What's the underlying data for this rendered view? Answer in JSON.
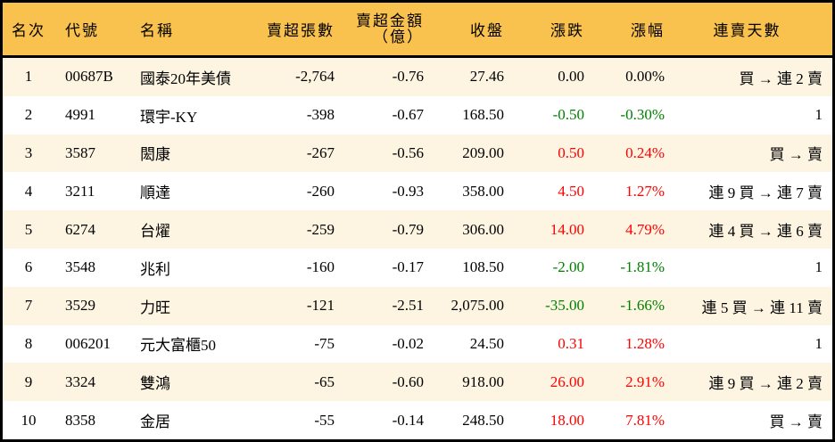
{
  "headers": {
    "rank": "名次",
    "code": "代號",
    "name": "名稱",
    "shares": "賣超張數",
    "amount_l1": "賣超金額",
    "amount_l2": "（億）",
    "close": "收盤",
    "change": "漲跌",
    "pct": "漲幅",
    "streak": "連賣天數"
  },
  "colors": {
    "header_bg": "#F9C14E",
    "odd_row_bg": "#FDF5E2",
    "up": "#FF0000",
    "down": "#008000"
  },
  "rows": [
    {
      "rank": "1",
      "code": "00687B",
      "name": "國泰20年美債",
      "shares": "-2,764",
      "amount": "-0.76",
      "close": "27.46",
      "change": "0.00",
      "pct": "0.00%",
      "dir": "flat",
      "streak": "買 → 連 2 賣"
    },
    {
      "rank": "2",
      "code": "4991",
      "name": "環宇-KY",
      "shares": "-398",
      "amount": "-0.67",
      "close": "168.50",
      "change": "-0.50",
      "pct": "-0.30%",
      "dir": "down",
      "streak": "1"
    },
    {
      "rank": "3",
      "code": "3587",
      "name": "閎康",
      "shares": "-267",
      "amount": "-0.56",
      "close": "209.00",
      "change": "0.50",
      "pct": "0.24%",
      "dir": "up",
      "streak": "買 → 賣"
    },
    {
      "rank": "4",
      "code": "3211",
      "name": "順達",
      "shares": "-260",
      "amount": "-0.93",
      "close": "358.00",
      "change": "4.50",
      "pct": "1.27%",
      "dir": "up",
      "streak": "連 9 買 → 連 7 賣"
    },
    {
      "rank": "5",
      "code": "6274",
      "name": "台燿",
      "shares": "-259",
      "amount": "-0.79",
      "close": "306.00",
      "change": "14.00",
      "pct": "4.79%",
      "dir": "up",
      "streak": "連 4 買 → 連 6 賣"
    },
    {
      "rank": "6",
      "code": "3548",
      "name": "兆利",
      "shares": "-160",
      "amount": "-0.17",
      "close": "108.50",
      "change": "-2.00",
      "pct": "-1.81%",
      "dir": "down",
      "streak": "1"
    },
    {
      "rank": "7",
      "code": "3529",
      "name": "力旺",
      "shares": "-121",
      "amount": "-2.51",
      "close": "2,075.00",
      "change": "-35.00",
      "pct": "-1.66%",
      "dir": "down",
      "streak": "連 5 買 → 連 11 賣"
    },
    {
      "rank": "8",
      "code": "006201",
      "name": "元大富櫃50",
      "shares": "-75",
      "amount": "-0.02",
      "close": "24.50",
      "change": "0.31",
      "pct": "1.28%",
      "dir": "up",
      "streak": "1"
    },
    {
      "rank": "9",
      "code": "3324",
      "name": "雙鴻",
      "shares": "-65",
      "amount": "-0.60",
      "close": "918.00",
      "change": "26.00",
      "pct": "2.91%",
      "dir": "up",
      "streak": "連 9 買 → 連 2 賣"
    },
    {
      "rank": "10",
      "code": "8358",
      "name": "金居",
      "shares": "-55",
      "amount": "-0.14",
      "close": "248.50",
      "change": "18.00",
      "pct": "7.81%",
      "dir": "up",
      "streak": "買 → 賣"
    }
  ]
}
